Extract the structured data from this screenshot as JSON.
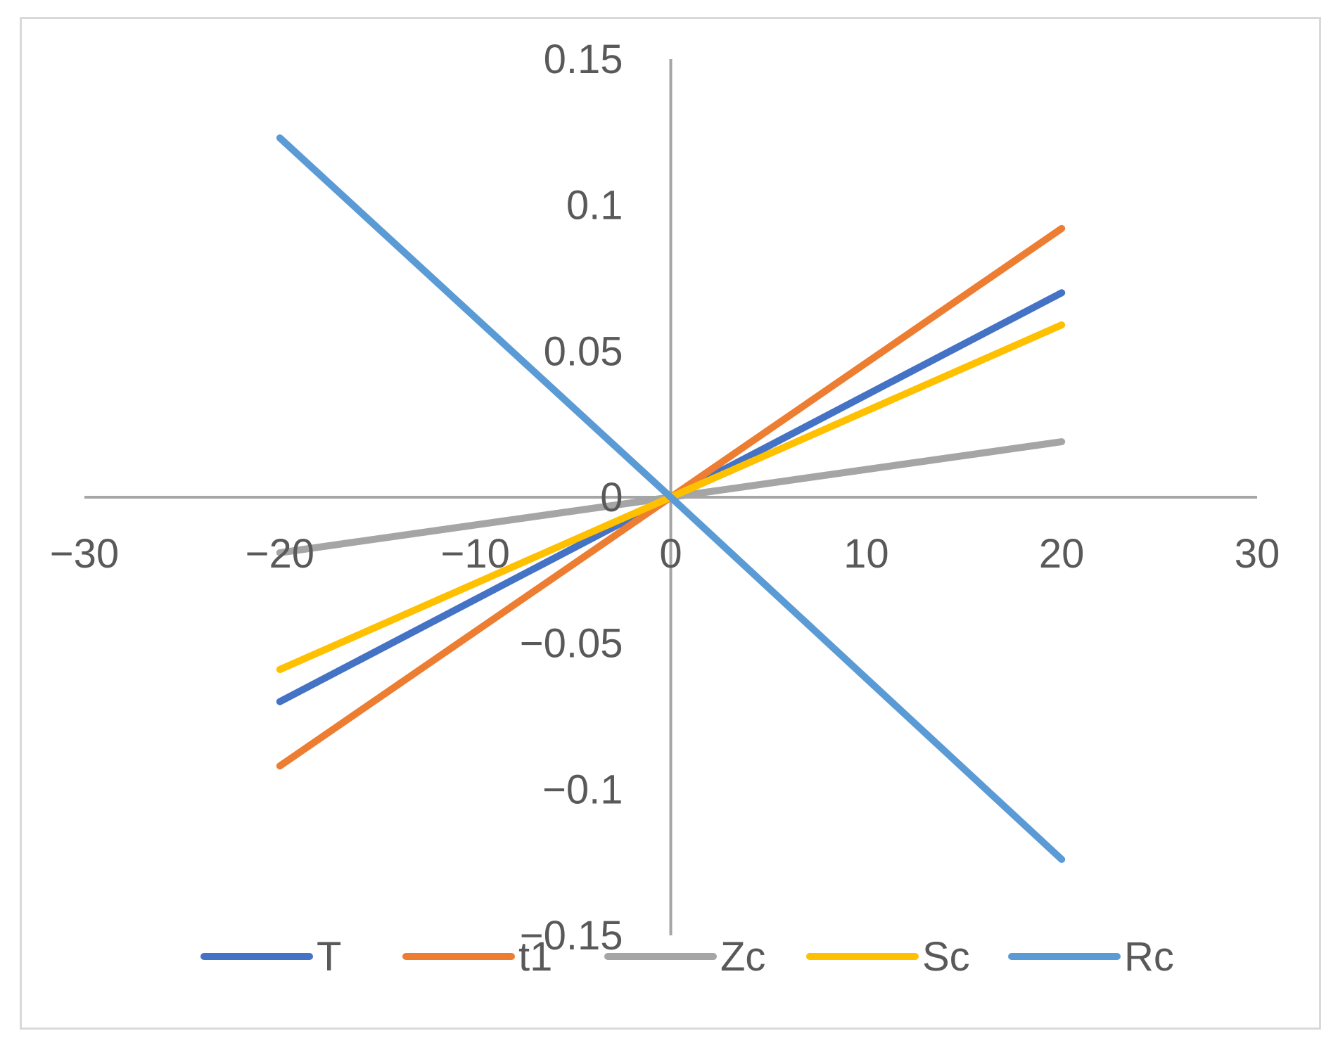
{
  "chart_data": {
    "type": "line",
    "title": "",
    "xlabel": "",
    "ylabel": "",
    "xlim": [
      -30,
      30
    ],
    "ylim": [
      -0.15,
      0.15
    ],
    "x_ticks": [
      -30,
      -20,
      -10,
      0,
      10,
      20,
      30
    ],
    "x_tick_labels": [
      "−30",
      "−20",
      "−10",
      "0",
      "10",
      "20",
      "30"
    ],
    "y_ticks": [
      0.15,
      0.1,
      0.05,
      0,
      -0.05,
      -0.1,
      -0.15
    ],
    "y_tick_labels": [
      "0.15",
      "0.1",
      "0.05",
      "0",
      "−0.05",
      "−0.1",
      "−0.15"
    ],
    "grid": false,
    "legend_position": "bottom",
    "series": [
      {
        "name": "T",
        "color": "#4472C4",
        "x": [
          -20,
          0,
          20
        ],
        "y": [
          -0.07,
          0,
          0.07
        ]
      },
      {
        "name": "t1",
        "color": "#ED7D31",
        "x": [
          -20,
          0,
          20
        ],
        "y": [
          -0.092,
          0,
          0.092
        ]
      },
      {
        "name": "Zc",
        "color": "#A5A5A5",
        "x": [
          -20,
          0,
          20
        ],
        "y": [
          -0.019,
          0,
          0.019
        ]
      },
      {
        "name": "Sc",
        "color": "#FFC000",
        "x": [
          -20,
          0,
          20
        ],
        "y": [
          -0.059,
          0,
          0.059
        ]
      },
      {
        "name": "Rc",
        "color": "#5B9BD5",
        "x": [
          -20,
          0,
          20
        ],
        "y": [
          0.123,
          0,
          -0.124
        ]
      }
    ]
  }
}
